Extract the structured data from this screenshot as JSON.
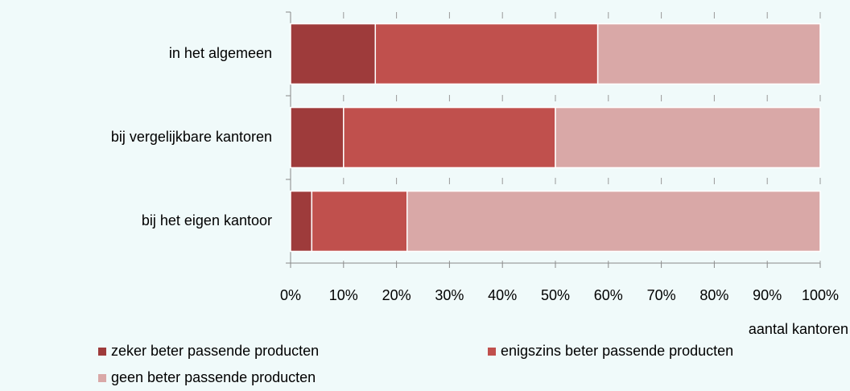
{
  "chart_data": {
    "type": "stacked_barh",
    "categories": [
      "in het algemeen",
      "bij vergelijkbare kantoren",
      "bij het eigen kantoor"
    ],
    "series": [
      {
        "name": "zeker beter passende producten",
        "color": "#9e3b3b",
        "values": [
          16,
          10,
          4
        ]
      },
      {
        "name": "enigszins beter passende producten",
        "color": "#c0504d",
        "values": [
          42,
          40,
          18
        ]
      },
      {
        "name": "geen beter passende producten",
        "color": "#d9a8a7",
        "values": [
          42,
          50,
          78
        ]
      }
    ],
    "x_label": "aantal kantoren",
    "xlim": [
      0,
      100
    ],
    "xticks": [
      {
        "value": 0,
        "label": "0%"
      },
      {
        "value": 10,
        "label": "10%"
      },
      {
        "value": 20,
        "label": "20%"
      },
      {
        "value": 30,
        "label": "30%"
      },
      {
        "value": 40,
        "label": "40%"
      },
      {
        "value": 50,
        "label": "50%"
      },
      {
        "value": 60,
        "label": "60%"
      },
      {
        "value": 70,
        "label": "70%"
      },
      {
        "value": 80,
        "label": "80%"
      },
      {
        "value": 90,
        "label": "90%"
      },
      {
        "value": 100,
        "label": "100%"
      }
    ],
    "grid": true
  }
}
